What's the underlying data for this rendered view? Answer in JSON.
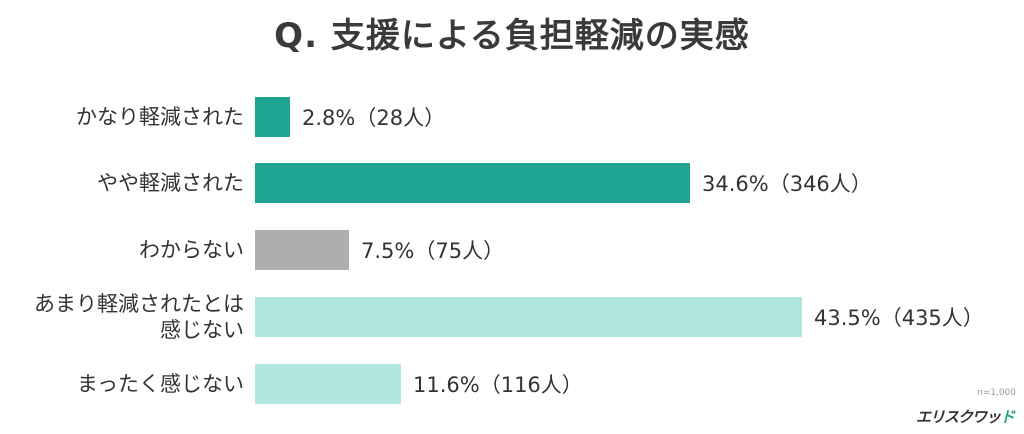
{
  "title": "Q. 支援による負担軽減の実感",
  "footer": {
    "sample_note": "n=1,000",
    "brand_main": "エリスクワッ",
    "brand_accent": "ド"
  },
  "colors": {
    "dark_teal": "#1fa58f",
    "gray": "#b0aeac",
    "light_teal": "#b1e7df"
  },
  "chart_data": {
    "type": "bar",
    "orientation": "horizontal",
    "title": "Q. 支援による負担軽減の実感",
    "categories": [
      "かなり軽減された",
      "やや軽減された",
      "わからない",
      "あまり軽減されたとは感じない",
      "まったく感じない"
    ],
    "values": [
      2.8,
      34.6,
      7.5,
      43.5,
      11.6
    ],
    "counts": [
      28,
      346,
      75,
      435,
      116
    ],
    "unit": "%",
    "n": 1000,
    "xlabel": "",
    "ylabel": "",
    "grid": false,
    "legend": "none"
  },
  "rows": [
    {
      "label": "かなり軽減された",
      "value_text": "2.8%（28人）",
      "pct": 2.8,
      "color": "#1fa58f"
    },
    {
      "label": "やや軽減された",
      "value_text": "34.6%（346人）",
      "pct": 34.6,
      "color": "#1fa58f"
    },
    {
      "label": "わからない",
      "value_text": "7.5%（75人）",
      "pct": 7.5,
      "color": "#b0aeac"
    },
    {
      "label": "あまり軽減されたとは\n感じない",
      "value_text": "43.5%（435人）",
      "pct": 43.5,
      "color": "#b1e7df"
    },
    {
      "label": "まったく感じない",
      "value_text": "11.6%（116人）",
      "pct": 11.6,
      "color": "#b1e7df"
    }
  ]
}
